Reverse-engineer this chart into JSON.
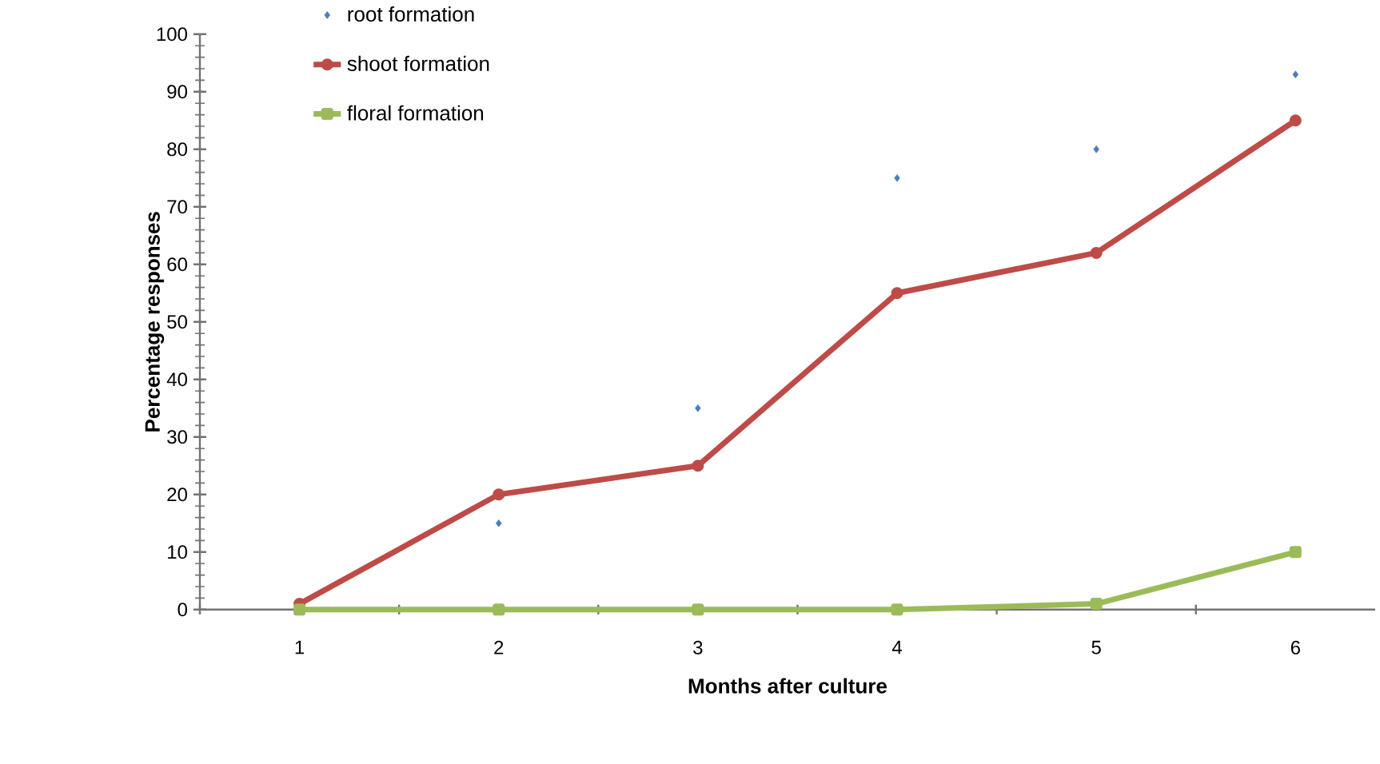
{
  "chart_data": {
    "type": "line",
    "xlabel": "Months after culture",
    "ylabel": "Percentage responses",
    "categories": [
      "1",
      "2",
      "3",
      "4",
      "5",
      "6"
    ],
    "series": [
      {
        "name": "root formation",
        "type": "scatter",
        "marker": "diamond",
        "color": "#4a7ebb",
        "values": [
          null,
          15,
          35,
          75,
          80,
          93
        ]
      },
      {
        "name": "shoot  formation",
        "marker": "circle",
        "color": "#be4b48",
        "values": [
          1,
          20,
          25,
          55,
          62,
          85
        ]
      },
      {
        "name": "floral formation",
        "marker": "square",
        "color": "#9bbb59",
        "values": [
          0,
          0,
          0,
          0,
          1,
          10
        ]
      }
    ],
    "ylim": [
      0,
      100
    ],
    "yticks": [
      0,
      10,
      20,
      30,
      40,
      50,
      60,
      70,
      80,
      90,
      100
    ],
    "grid": false,
    "legend": "top left"
  }
}
